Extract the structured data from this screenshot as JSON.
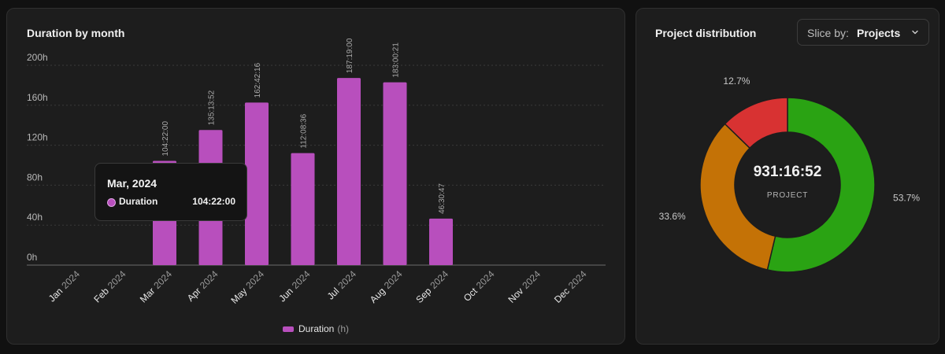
{
  "left_panel": {
    "title": "Duration by month"
  },
  "right_panel": {
    "title": "Project distribution",
    "slice_dropdown": {
      "prefix": "Slice by:",
      "value": "Projects",
      "icon": "chevron-down-icon"
    }
  },
  "tooltip": {
    "title": "Mar, 2024",
    "series_label": "Duration",
    "value": "104:22:00"
  },
  "legend": {
    "name": "Duration",
    "unit": "(h)",
    "color": "#b84fbd"
  },
  "chart_data": [
    {
      "type": "bar",
      "title": "Duration by month",
      "categories": [
        {
          "month": "Jan",
          "year": "2024"
        },
        {
          "month": "Feb",
          "year": "2024"
        },
        {
          "month": "Mar",
          "year": "2024"
        },
        {
          "month": "Apr",
          "year": "2024"
        },
        {
          "month": "May",
          "year": "2024"
        },
        {
          "month": "Jun",
          "year": "2024"
        },
        {
          "month": "Jul",
          "year": "2024"
        },
        {
          "month": "Aug",
          "year": "2024"
        },
        {
          "month": "Sep",
          "year": "2024"
        },
        {
          "month": "Oct",
          "year": "2024"
        },
        {
          "month": "Nov",
          "year": "2024"
        },
        {
          "month": "Dec",
          "year": "2024"
        }
      ],
      "series": [
        {
          "name": "Duration",
          "color": "#b84fbd",
          "values": [
            0,
            0,
            104.37,
            135.23,
            162.71,
            112.14,
            187.32,
            183.01,
            46.51,
            0,
            0,
            0
          ],
          "labels": [
            "",
            "",
            "104:22:00",
            "135:13:52",
            "162:42:16",
            "112:08:36",
            "187:19:00",
            "183:00:21",
            "46:30:47",
            "",
            "",
            ""
          ]
        }
      ],
      "y_ticks": [
        "0h",
        "40h",
        "80h",
        "120h",
        "160h",
        "200h"
      ],
      "ylim": [
        0,
        200
      ],
      "grid": true,
      "legend_position": "bottom-center"
    },
    {
      "type": "pie",
      "title": "Project distribution",
      "center_value": "931:16:52",
      "center_label": "PROJECT",
      "slices": [
        {
          "value": 53.7,
          "label": "53.7%",
          "color": "#2aa313"
        },
        {
          "value": 33.6,
          "label": "33.6%",
          "color": "#c47206"
        },
        {
          "value": 12.7,
          "label": "12.7%",
          "color": "#d83232"
        }
      ]
    }
  ]
}
